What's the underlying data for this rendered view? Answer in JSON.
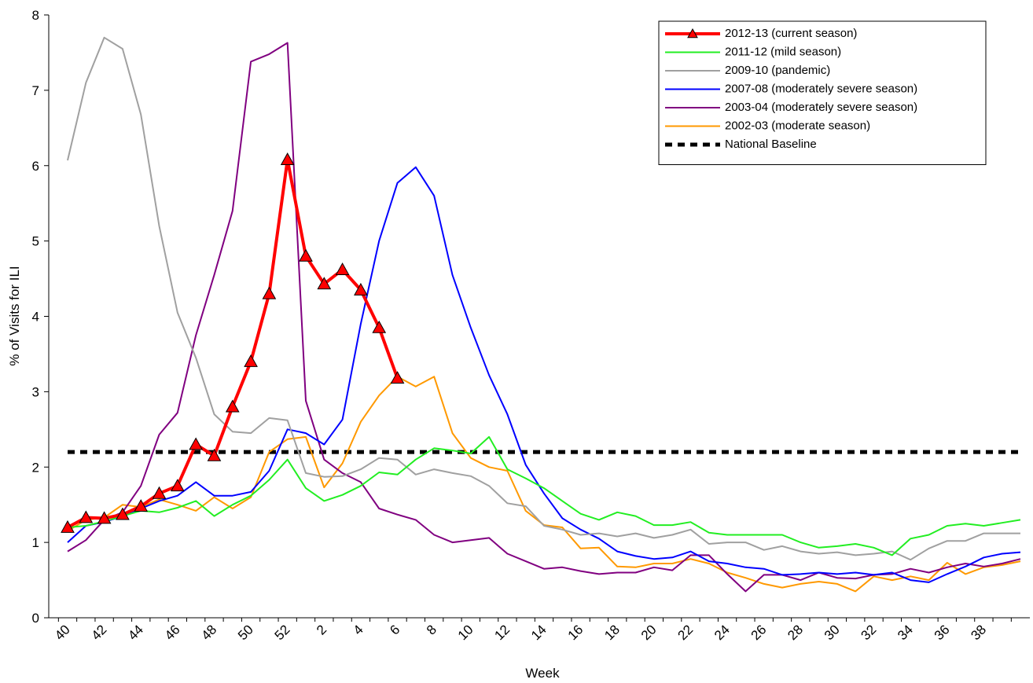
{
  "chart_data": {
    "type": "line",
    "x_label": "Week",
    "y_label": "% of Visits for ILI",
    "categories": [
      "40",
      null,
      "42",
      null,
      "44",
      null,
      "46",
      null,
      "48",
      null,
      "50",
      null,
      "52",
      null,
      "2",
      null,
      "4",
      null,
      "6",
      null,
      "8",
      null,
      "10",
      null,
      "12",
      null,
      "14",
      null,
      "16",
      null,
      "18",
      null,
      "20",
      null,
      "22",
      null,
      "24",
      null,
      "26",
      null,
      "28",
      null,
      "30",
      null,
      "32",
      null,
      "34",
      null,
      "36",
      null,
      "38",
      null,
      null
    ],
    "ylim": [
      0,
      8
    ],
    "yticks": [
      0,
      1,
      2,
      3,
      4,
      5,
      6,
      7,
      8
    ],
    "legend": "top-right",
    "series": [
      {
        "name": "2012-13 (current season)",
        "color": "#ff0000",
        "marker": "triangle",
        "width": 4,
        "values": [
          1.2,
          1.33,
          1.32,
          1.37,
          1.48,
          1.65,
          1.75,
          2.3,
          2.15,
          2.8,
          3.4,
          4.3,
          6.08,
          4.8,
          4.43,
          4.62,
          4.35,
          3.85,
          3.18,
          null,
          null,
          null,
          null,
          null,
          null,
          null,
          null,
          null,
          null,
          null,
          null,
          null,
          null,
          null,
          null,
          null,
          null,
          null,
          null,
          null,
          null,
          null,
          null,
          null,
          null,
          null,
          null,
          null,
          null,
          null,
          null,
          null,
          null
        ]
      },
      {
        "name": "2011-12 (mild season)",
        "color": "#22ee22",
        "width": 2,
        "values": [
          1.2,
          1.22,
          1.28,
          1.35,
          1.42,
          1.4,
          1.46,
          1.55,
          1.35,
          1.5,
          1.62,
          1.83,
          2.1,
          1.72,
          1.55,
          1.63,
          1.75,
          1.93,
          1.9,
          2.1,
          2.25,
          2.22,
          2.18,
          2.4,
          1.97,
          1.85,
          1.72,
          1.55,
          1.38,
          1.3,
          1.4,
          1.35,
          1.23,
          1.23,
          1.27,
          1.13,
          1.1,
          1.1,
          1.1,
          1.1,
          1.0,
          0.93,
          0.95,
          0.98,
          0.93,
          0.83,
          1.05,
          1.1,
          1.22,
          1.25,
          1.22,
          1.26,
          1.3
        ]
      },
      {
        "name": "2009-10 (pandemic)",
        "color": "#a0a0a0",
        "width": 2,
        "values": [
          6.07,
          7.1,
          7.7,
          7.55,
          6.68,
          5.2,
          4.05,
          3.45,
          2.7,
          2.47,
          2.45,
          2.65,
          2.62,
          1.92,
          1.87,
          1.88,
          1.97,
          2.12,
          2.1,
          1.9,
          1.97,
          1.92,
          1.88,
          1.75,
          1.52,
          1.48,
          1.22,
          1.17,
          1.1,
          1.12,
          1.08,
          1.12,
          1.06,
          1.1,
          1.17,
          0.98,
          1.0,
          1.0,
          0.9,
          0.95,
          0.88,
          0.85,
          0.87,
          0.83,
          0.85,
          0.88,
          0.77,
          0.92,
          1.02,
          1.02,
          1.12,
          1.12,
          1.12
        ]
      },
      {
        "name": "2007-08 (moderately severe season)",
        "color": "#0000ff",
        "width": 2,
        "values": [
          1.0,
          1.22,
          1.27,
          1.35,
          1.45,
          1.55,
          1.62,
          1.8,
          1.62,
          1.62,
          1.67,
          1.95,
          2.5,
          2.45,
          2.3,
          2.63,
          3.9,
          5.0,
          5.77,
          5.98,
          5.6,
          4.55,
          3.85,
          3.22,
          2.7,
          2.03,
          1.65,
          1.32,
          1.17,
          1.05,
          0.88,
          0.82,
          0.78,
          0.8,
          0.88,
          0.75,
          0.72,
          0.67,
          0.65,
          0.57,
          0.58,
          0.6,
          0.58,
          0.6,
          0.57,
          0.6,
          0.5,
          0.47,
          0.58,
          0.68,
          0.8,
          0.85,
          0.87
        ]
      },
      {
        "name": "2003-04 (moderately severe season)",
        "color": "#800080",
        "width": 2,
        "values": [
          0.88,
          1.03,
          1.3,
          1.4,
          1.75,
          2.43,
          2.72,
          3.75,
          4.55,
          5.4,
          7.38,
          7.48,
          7.63,
          2.88,
          2.1,
          1.92,
          1.8,
          1.45,
          1.37,
          1.3,
          1.1,
          1.0,
          1.03,
          1.06,
          0.85,
          0.75,
          0.65,
          0.67,
          0.62,
          0.58,
          0.6,
          0.6,
          0.67,
          0.63,
          0.83,
          0.83,
          0.58,
          0.35,
          0.57,
          0.57,
          0.5,
          0.6,
          0.53,
          0.52,
          0.57,
          0.58,
          0.65,
          0.6,
          0.67,
          0.72,
          0.68,
          0.72,
          0.78
        ]
      },
      {
        "name": "2002-03 (moderate season)",
        "color": "#ff9900",
        "width": 2,
        "values": [
          1.15,
          1.3,
          1.33,
          1.5,
          1.47,
          1.57,
          1.5,
          1.42,
          1.6,
          1.45,
          1.6,
          2.2,
          2.37,
          2.4,
          1.73,
          2.05,
          2.6,
          2.95,
          3.2,
          3.07,
          3.2,
          2.45,
          2.12,
          2.0,
          1.95,
          1.42,
          1.23,
          1.2,
          0.92,
          0.93,
          0.68,
          0.67,
          0.72,
          0.72,
          0.78,
          0.72,
          0.6,
          0.53,
          0.45,
          0.4,
          0.45,
          0.48,
          0.45,
          0.35,
          0.55,
          0.5,
          0.55,
          0.5,
          0.73,
          0.58,
          0.67,
          0.7,
          0.75
        ]
      }
    ],
    "baseline": {
      "name": "National Baseline",
      "value": 2.2,
      "color": "#000000"
    }
  }
}
